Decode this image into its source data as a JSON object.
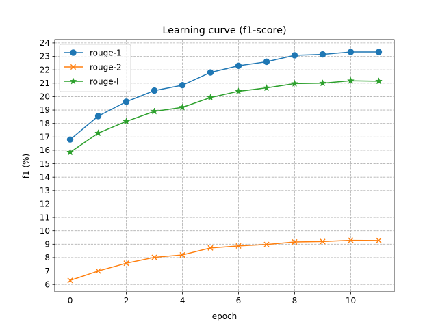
{
  "chart_data": {
    "type": "line",
    "title": "Learning curve (f1-score)",
    "xlabel": "epoch",
    "ylabel": "f1 (%)",
    "x": [
      0,
      1,
      2,
      3,
      4,
      5,
      6,
      7,
      8,
      9,
      10,
      11
    ],
    "xlim": [
      -0.55,
      11.55
    ],
    "ylim": [
      5.45,
      24.25
    ],
    "xticks": [
      0,
      2,
      4,
      6,
      8,
      10
    ],
    "yticks": [
      6,
      7,
      8,
      9,
      10,
      11,
      12,
      13,
      14,
      15,
      16,
      17,
      18,
      19,
      20,
      21,
      22,
      23,
      24
    ],
    "grid": true,
    "legend_position": "upper-left",
    "series": [
      {
        "name": "rouge-1",
        "color": "#1f77b4",
        "marker": "circle",
        "values": [
          16.8,
          18.55,
          19.62,
          20.45,
          20.85,
          21.8,
          22.3,
          22.6,
          23.08,
          23.15,
          23.33,
          23.33
        ]
      },
      {
        "name": "rouge-2",
        "color": "#ff7f0e",
        "marker": "x",
        "values": [
          6.3,
          7.0,
          7.58,
          8.02,
          8.2,
          8.72,
          8.87,
          8.98,
          9.17,
          9.2,
          9.29,
          9.28
        ]
      },
      {
        "name": "rouge-l",
        "color": "#2ca02c",
        "marker": "star",
        "values": [
          15.85,
          17.28,
          18.15,
          18.9,
          19.2,
          19.93,
          20.4,
          20.65,
          20.97,
          21.0,
          21.18,
          21.15
        ]
      }
    ]
  }
}
